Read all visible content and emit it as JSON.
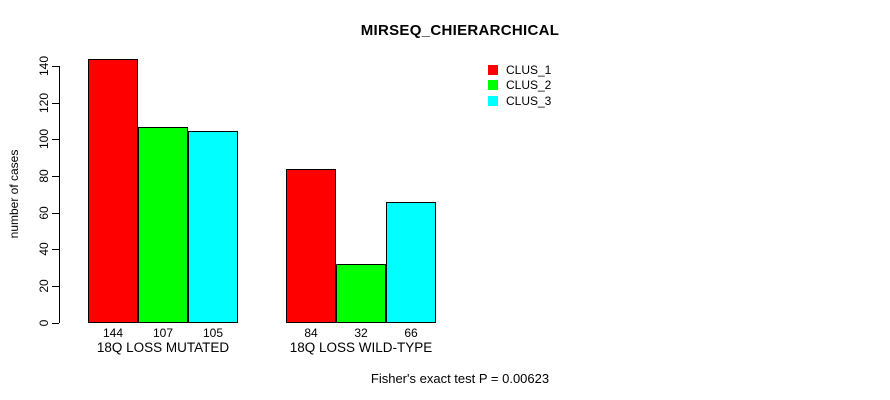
{
  "chart_data": {
    "type": "bar",
    "title": "MIRSEQ_CHIERARCHICAL",
    "ylabel": "number of cases",
    "xlabel": "",
    "footer": "Fisher's exact test P = 0.00623",
    "categories": [
      "18Q LOSS MUTATED",
      "18Q LOSS WILD-TYPE"
    ],
    "series": [
      {
        "name": "CLUS_1",
        "color": "#ff0000",
        "values": [
          144,
          84
        ]
      },
      {
        "name": "CLUS_2",
        "color": "#00ff00",
        "values": [
          107,
          32
        ]
      },
      {
        "name": "CLUS_3",
        "color": "#00ffff",
        "values": [
          105,
          66
        ]
      }
    ],
    "bar_labels": [
      [
        "144",
        "107",
        "105"
      ],
      [
        "84",
        "32",
        "66"
      ]
    ],
    "yticks": [
      0,
      20,
      40,
      60,
      80,
      100,
      120,
      140
    ],
    "ylim": [
      0,
      144
    ],
    "grid": false,
    "legend_position": "top-right",
    "axis_color": "#000000",
    "background_color": "#ffffff"
  }
}
